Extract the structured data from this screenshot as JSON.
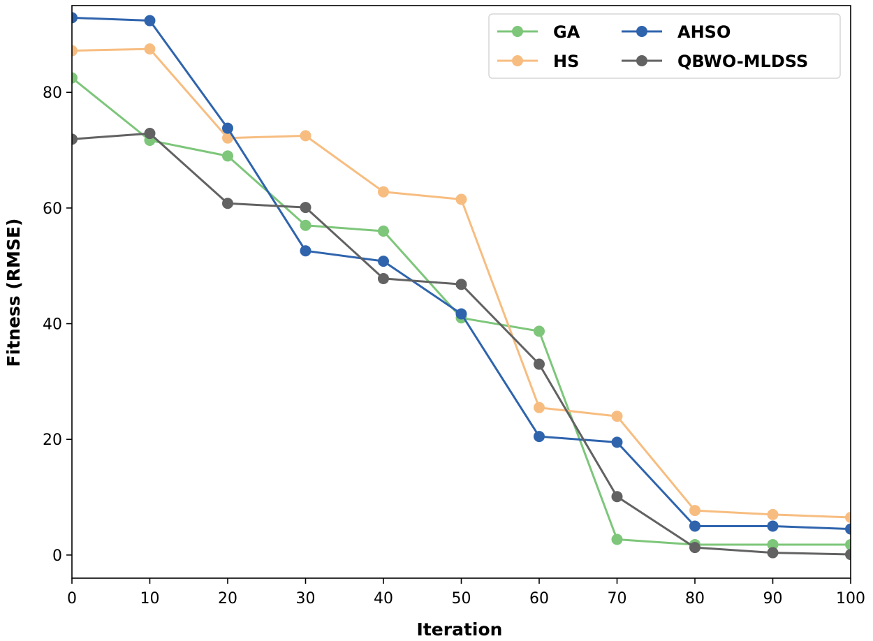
{
  "chart_data": {
    "type": "line",
    "title": "",
    "xlabel": "Iteration",
    "ylabel": "Fitness (RMSE)",
    "x": [
      0,
      10,
      20,
      30,
      40,
      50,
      60,
      70,
      80,
      90,
      100
    ],
    "xlim": [
      0,
      100
    ],
    "ylim": [
      -4,
      95
    ],
    "xticks": [
      0,
      10,
      20,
      30,
      40,
      50,
      60,
      70,
      80,
      90,
      100
    ],
    "yticks": [
      0,
      20,
      40,
      60,
      80
    ],
    "grid": false,
    "legend_position": "top-right",
    "series": [
      {
        "name": "GA",
        "color": "#7dc67a",
        "values": [
          82.5,
          71.7,
          69.0,
          57.0,
          56.0,
          41.0,
          38.7,
          2.7,
          1.8,
          1.8,
          1.8
        ]
      },
      {
        "name": "HS",
        "color": "#f7bd80",
        "values": [
          87.2,
          87.5,
          72.1,
          72.5,
          62.8,
          61.5,
          25.5,
          24.0,
          7.7,
          7.0,
          6.5
        ]
      },
      {
        "name": "AHSO",
        "color": "#2f64ad",
        "values": [
          92.9,
          92.4,
          73.8,
          52.6,
          50.8,
          41.7,
          20.5,
          19.5,
          5.0,
          5.0,
          4.5
        ]
      },
      {
        "name": "QBWO-MLDSS",
        "color": "#626262",
        "values": [
          71.9,
          72.9,
          60.8,
          60.1,
          47.8,
          46.8,
          33.0,
          10.1,
          1.3,
          0.4,
          0.1
        ]
      }
    ],
    "legend_order": [
      "GA",
      "AHSO",
      "HS",
      "QBWO-MLDSS"
    ]
  }
}
